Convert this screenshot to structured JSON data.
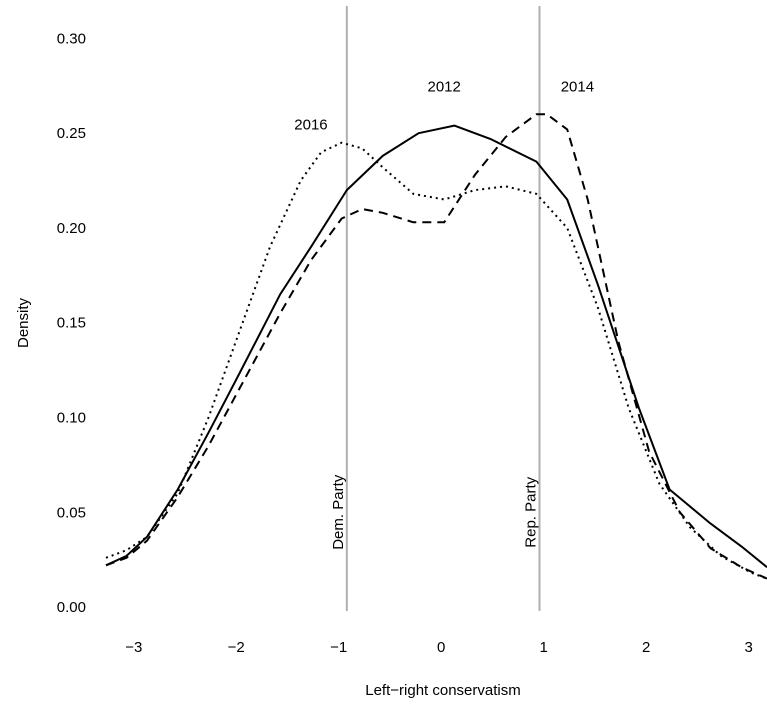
{
  "chart_data": {
    "type": "line",
    "title": "",
    "xlabel": "Left−right conservatism",
    "ylabel": "Density",
    "xlim": [
      -3.3,
      3.15
    ],
    "ylim": [
      -0.01,
      0.315
    ],
    "grid": false,
    "legend": "none",
    "x_ticks": [
      {
        "value": -3,
        "label": "−3"
      },
      {
        "value": -2,
        "label": "−2"
      },
      {
        "value": -1,
        "label": "−1"
      },
      {
        "value": 0,
        "label": "0"
      },
      {
        "value": 1,
        "label": "1"
      },
      {
        "value": 2,
        "label": "2"
      },
      {
        "value": 3,
        "label": "3"
      }
    ],
    "y_ticks": [
      {
        "value": 0.0,
        "label": "0.00"
      },
      {
        "value": 0.05,
        "label": "0.05"
      },
      {
        "value": 0.1,
        "label": "0.10"
      },
      {
        "value": 0.15,
        "label": "0.15"
      },
      {
        "value": 0.2,
        "label": "0.20"
      },
      {
        "value": 0.25,
        "label": "0.25"
      },
      {
        "value": 0.3,
        "label": "0.30"
      }
    ],
    "reference_lines": [
      {
        "x": -0.95,
        "label": "Dem. Party",
        "label_y": 0.05,
        "color": "#b0b0b0"
      },
      {
        "x": 0.93,
        "label": "Rep. Party",
        "label_y": 0.05,
        "color": "#b0b0b0"
      }
    ],
    "series": [
      {
        "name": "2012",
        "style": "solid",
        "color": "#000000",
        "label_at": {
          "x": 0.0,
          "y": 0.272
        },
        "x": [
          -3.3,
          -3.1,
          -2.9,
          -2.6,
          -2.3,
          -2.0,
          -1.6,
          -1.3,
          -0.95,
          -0.6,
          -0.25,
          0.1,
          0.45,
          0.9,
          1.2,
          1.5,
          1.9,
          2.2,
          2.6,
          2.9,
          3.15
        ],
        "y": [
          0.022,
          0.027,
          0.037,
          0.062,
          0.092,
          0.123,
          0.165,
          0.19,
          0.22,
          0.238,
          0.25,
          0.254,
          0.247,
          0.235,
          0.215,
          0.17,
          0.105,
          0.062,
          0.044,
          0.032,
          0.021
        ]
      },
      {
        "name": "2014",
        "style": "dashed",
        "color": "#000000",
        "label_at": {
          "x": 1.3,
          "y": 0.272
        },
        "x": [
          -3.3,
          -3.1,
          -2.9,
          -2.6,
          -2.3,
          -2.0,
          -1.6,
          -1.3,
          -1.0,
          -0.8,
          -0.6,
          -0.3,
          0.0,
          0.3,
          0.6,
          0.9,
          1.0,
          1.2,
          1.4,
          1.7,
          2.0,
          2.3,
          2.6,
          2.9,
          3.15
        ],
        "y": [
          0.022,
          0.026,
          0.035,
          0.058,
          0.085,
          0.115,
          0.155,
          0.183,
          0.205,
          0.21,
          0.208,
          0.203,
          0.203,
          0.228,
          0.248,
          0.26,
          0.26,
          0.252,
          0.215,
          0.14,
          0.082,
          0.05,
          0.031,
          0.021,
          0.015
        ]
      },
      {
        "name": "2016",
        "style": "dotted",
        "color": "#000000",
        "label_at": {
          "x": -1.3,
          "y": 0.252
        },
        "x": [
          -3.3,
          -3.1,
          -2.9,
          -2.6,
          -2.3,
          -2.0,
          -1.7,
          -1.4,
          -1.2,
          -1.0,
          -0.8,
          -0.6,
          -0.3,
          0.0,
          0.3,
          0.6,
          0.9,
          1.2,
          1.5,
          1.8,
          2.1,
          2.4,
          2.7,
          3.0,
          3.15
        ],
        "y": [
          0.026,
          0.03,
          0.037,
          0.06,
          0.1,
          0.145,
          0.19,
          0.225,
          0.24,
          0.245,
          0.242,
          0.232,
          0.218,
          0.215,
          0.22,
          0.222,
          0.218,
          0.2,
          0.158,
          0.105,
          0.065,
          0.042,
          0.027,
          0.018,
          0.015
        ]
      }
    ]
  }
}
